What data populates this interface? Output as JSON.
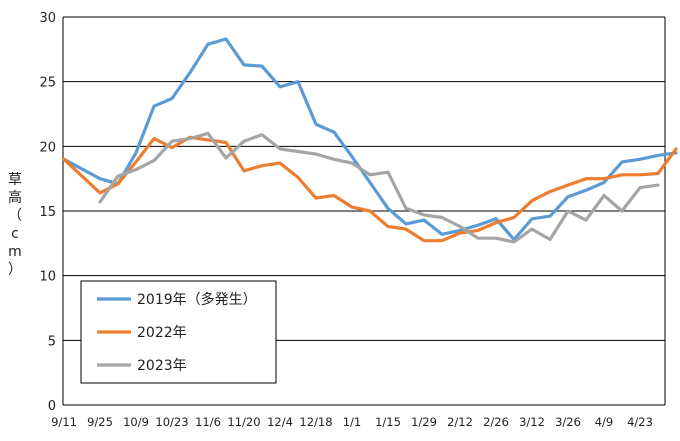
{
  "chart_data": {
    "type": "line",
    "ylabel": "草高（cm）",
    "ylim": [
      0,
      30
    ],
    "yticks": [
      0,
      5,
      10,
      15,
      20,
      25,
      30
    ],
    "grid": true,
    "legend_position": "bottom-left",
    "categories": [
      "9/11",
      "9/25",
      "10/9",
      "10/23",
      "11/6",
      "11/20",
      "12/4",
      "12/18",
      "1/1",
      "1/15",
      "1/29",
      "2/12",
      "2/26",
      "3/12",
      "3/26",
      "4/9",
      "4/23"
    ],
    "series": [
      {
        "name": "2019年（多発生）",
        "color": "#5B9BD5",
        "points": [
          [
            0,
            19.0
          ],
          [
            1,
            17.5
          ],
          [
            1.5,
            17.1
          ],
          [
            2,
            19.5
          ],
          [
            2.5,
            23.1
          ],
          [
            3,
            23.7
          ],
          [
            3.5,
            25.7
          ],
          [
            4,
            27.9
          ],
          [
            4.5,
            28.3
          ],
          [
            5,
            26.3
          ],
          [
            5.5,
            26.2
          ],
          [
            6,
            24.6
          ],
          [
            6.5,
            25.0
          ],
          [
            7,
            21.7
          ],
          [
            7.5,
            21.1
          ],
          [
            8,
            19.2
          ],
          [
            8.5,
            17.2
          ],
          [
            9,
            15.2
          ],
          [
            9.5,
            14.0
          ],
          [
            10,
            14.3
          ],
          [
            10.5,
            13.2
          ],
          [
            11,
            13.5
          ],
          [
            11.5,
            13.9
          ],
          [
            12,
            14.4
          ],
          [
            12.5,
            12.8
          ],
          [
            13,
            14.4
          ],
          [
            13.5,
            14.6
          ],
          [
            14,
            16.1
          ],
          [
            14.5,
            16.6
          ],
          [
            15,
            17.2
          ],
          [
            15.5,
            18.8
          ],
          [
            16,
            19.0
          ],
          [
            16.5,
            19.3
          ],
          [
            17,
            19.5
          ]
        ]
      },
      {
        "name": "2022年",
        "color": "#ED7D31",
        "points": [
          [
            0,
            19.0
          ],
          [
            1,
            16.4
          ],
          [
            1.5,
            17.1
          ],
          [
            2,
            18.8
          ],
          [
            2.5,
            20.6
          ],
          [
            3,
            19.9
          ],
          [
            3.5,
            20.7
          ],
          [
            4,
            20.5
          ],
          [
            4.5,
            20.3
          ],
          [
            5,
            18.1
          ],
          [
            5.5,
            18.5
          ],
          [
            6,
            18.7
          ],
          [
            6.5,
            17.6
          ],
          [
            7,
            16.0
          ],
          [
            7.5,
            16.2
          ],
          [
            8,
            15.3
          ],
          [
            8.5,
            15.0
          ],
          [
            9,
            13.8
          ],
          [
            9.5,
            13.6
          ],
          [
            10,
            12.7
          ],
          [
            10.5,
            12.7
          ],
          [
            11,
            13.3
          ],
          [
            11.5,
            13.5
          ],
          [
            12,
            14.1
          ],
          [
            12.5,
            14.5
          ],
          [
            13,
            15.8
          ],
          [
            13.5,
            16.5
          ],
          [
            14,
            17.0
          ],
          [
            14.5,
            17.5
          ],
          [
            15,
            17.5
          ],
          [
            15.5,
            17.8
          ],
          [
            16,
            17.8
          ],
          [
            16.5,
            17.9
          ],
          [
            17,
            19.8
          ]
        ]
      },
      {
        "name": "2023年",
        "color": "#A5A5A5",
        "points": [
          [
            1,
            15.7
          ],
          [
            1.5,
            17.7
          ],
          [
            2,
            18.2
          ],
          [
            2.5,
            18.9
          ],
          [
            3,
            20.4
          ],
          [
            3.5,
            20.6
          ],
          [
            4,
            21.0
          ],
          [
            4.5,
            19.1
          ],
          [
            5,
            20.4
          ],
          [
            5.5,
            20.9
          ],
          [
            6,
            19.8
          ],
          [
            6.5,
            19.6
          ],
          [
            7,
            19.4
          ],
          [
            7.5,
            19.0
          ],
          [
            8,
            18.7
          ],
          [
            8.5,
            17.8
          ],
          [
            9,
            18.0
          ],
          [
            9.5,
            15.2
          ],
          [
            10,
            14.7
          ],
          [
            10.5,
            14.5
          ],
          [
            11,
            13.8
          ],
          [
            11.5,
            12.9
          ],
          [
            12,
            12.9
          ],
          [
            12.5,
            12.6
          ],
          [
            13,
            13.6
          ],
          [
            13.5,
            12.8
          ],
          [
            14,
            15.0
          ],
          [
            14.5,
            14.3
          ],
          [
            15,
            16.2
          ],
          [
            15.5,
            15.0
          ],
          [
            16,
            16.8
          ],
          [
            16.5,
            17.0
          ]
        ]
      }
    ]
  }
}
